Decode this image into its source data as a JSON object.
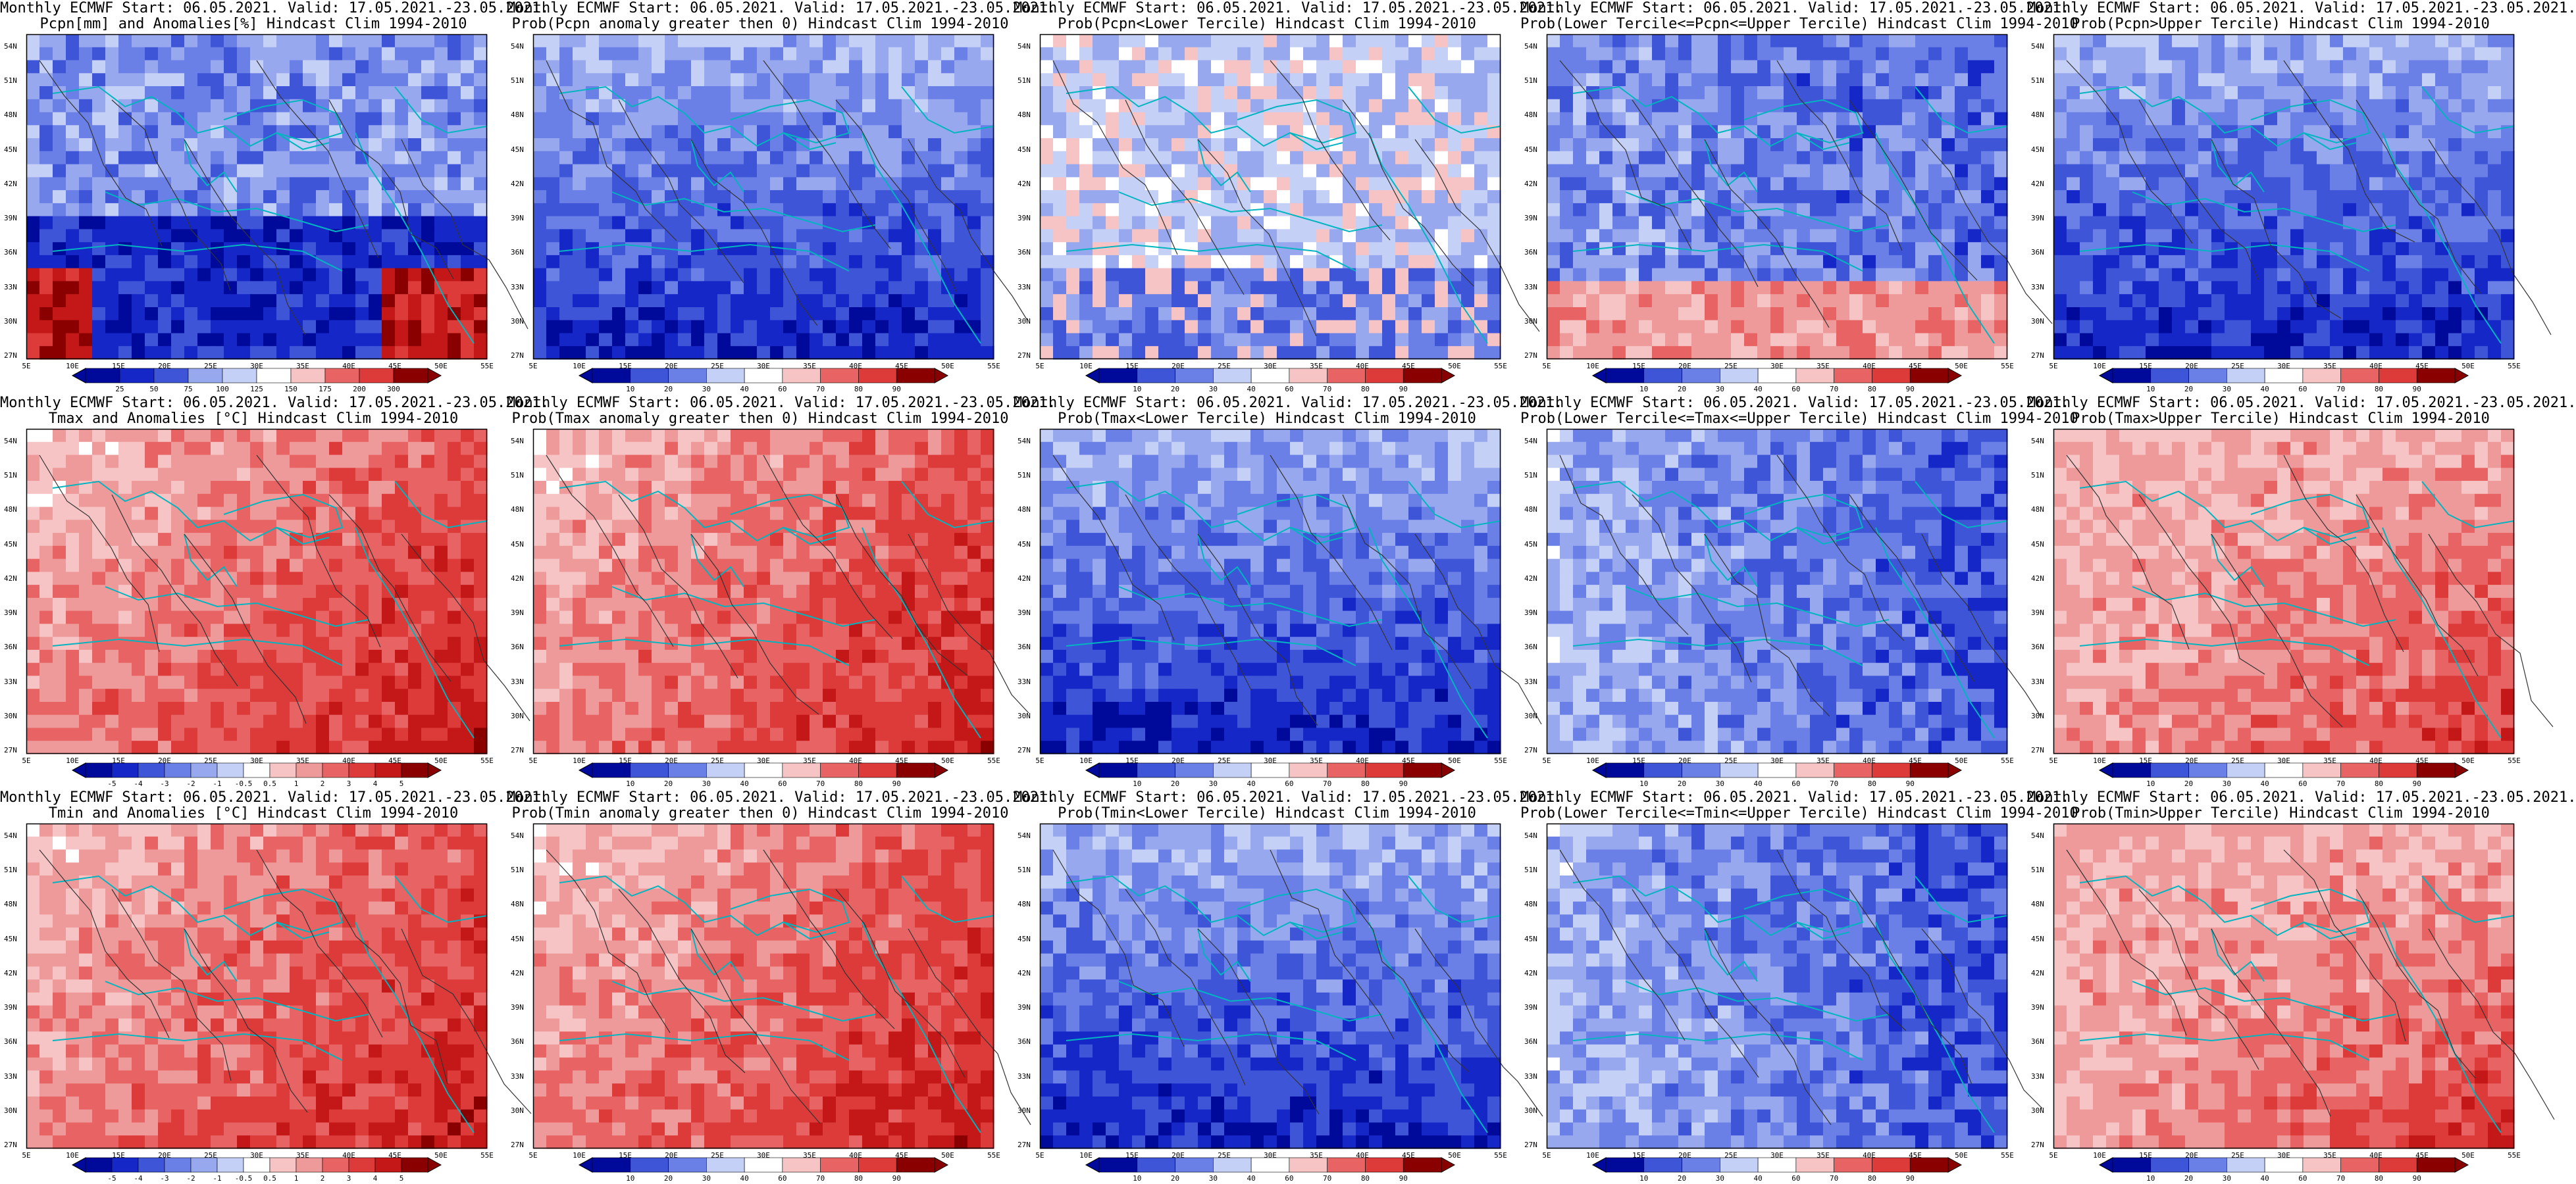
{
  "colors": {
    "sea": "#00c8c8",
    "coast": "#00b5c0",
    "contour": "#333333",
    "red_scale": [
      "#ffffff",
      "#f6c4c4",
      "#ef9a9a",
      "#e86464",
      "#dd3a3a",
      "#c41818",
      "#8a0000"
    ],
    "blue_scale": [
      "#ffffff",
      "#c4d0f6",
      "#98a8ee",
      "#6b80e6",
      "#3f55d8",
      "#1627c8",
      "#000a9a"
    ]
  },
  "lat_labels": [
    "54N",
    "51N",
    "48N",
    "45N",
    "42N",
    "39N",
    "36N",
    "33N",
    "30N",
    "27N"
  ],
  "lon_labels": [
    "5E",
    "10E",
    "15E",
    "20E",
    "25E",
    "30E",
    "35E",
    "40E",
    "45E",
    "50E",
    "55E"
  ],
  "panels": [
    {
      "title1": "Monthly ECMWF Start: 06.05.2021. Valid: 17.05.2021.-23.05.2021.",
      "title2": "Pcpn[mm] and Anomalies[%]",
      "title2_suffix": "Hindcast Clim 1994-2010",
      "colorbar_labels": [
        "25",
        "50",
        "75",
        "100",
        "125",
        "150",
        "175",
        "200",
        "300"
      ],
      "scheme": "precip-anom"
    },
    {
      "title1": "Monthly ECMWF Start: 06.05.2021. Valid: 17.05.2021.-23.05.2021.",
      "title2": "Prob(Pcpn anomaly greater then 0)",
      "title2_suffix": "Hindcast Clim 1994-2010",
      "colorbar_labels": [
        "10",
        "20",
        "30",
        "40",
        "60",
        "70",
        "80",
        "90"
      ],
      "scheme": "blue"
    },
    {
      "title1": "Monthly ECMWF Start: 06.05.2021. Valid: 17.05.2021.-23.05.2021.",
      "title2": "Prob(Pcpn<Lower Tercile)",
      "title2_suffix": "Hindcast Clim 1994-2010",
      "colorbar_labels": [
        "10",
        "20",
        "30",
        "40",
        "60",
        "70",
        "80",
        "90"
      ],
      "scheme": "mixed-light"
    },
    {
      "title1": "Monthly ECMWF Start: 06.05.2021. Valid: 17.05.2021.-23.05.2021.",
      "title2": "Prob(Lower Tercile<=Pcpn<=Upper Tercile)",
      "title2_suffix": "Hindcast Clim 1994-2010",
      "colorbar_labels": [
        "10",
        "20",
        "30",
        "40",
        "60",
        "70",
        "80",
        "90"
      ],
      "scheme": "blue-red-south"
    },
    {
      "title1": "Monthly ECMWF Start: 06.05.2021. Valid: 17.05.2021.-23.05.2021.",
      "title2": "Prob(Pcpn>Upper Tercile)",
      "title2_suffix": "Hindcast Clim 1994-2010",
      "colorbar_labels": [
        "10",
        "20",
        "30",
        "40",
        "60",
        "70",
        "80",
        "90"
      ],
      "scheme": "blue"
    },
    {
      "title1": "Monthly ECMWF Start: 06.05.2021. Valid: 17.05.2021.-23.05.2021.",
      "title2": "Tmax and Anomalies [°C]",
      "title2_suffix": "Hindcast Clim 1994-2010",
      "colorbar_labels": [
        "-5",
        "-4",
        "-3",
        "-2",
        "-1",
        "-0.5",
        "0.5",
        "1",
        "2",
        "3",
        "4",
        "5"
      ],
      "scheme": "red"
    },
    {
      "title1": "Monthly ECMWF Start: 06.05.2021. Valid: 17.05.2021.-23.05.2021.",
      "title2": "Prob(Tmax anomaly greater then 0)",
      "title2_suffix": "Hindcast Clim 1994-2010",
      "colorbar_labels": [
        "10",
        "20",
        "30",
        "40",
        "60",
        "70",
        "80",
        "90"
      ],
      "scheme": "red"
    },
    {
      "title1": "Monthly ECMWF Start: 06.05.2021. Valid: 17.05.2021.-23.05.2021.",
      "title2": "Prob(Tmax<Lower Tercile)",
      "title2_suffix": "Hindcast Clim 1994-2010",
      "colorbar_labels": [
        "10",
        "20",
        "30",
        "40",
        "60",
        "70",
        "80",
        "90"
      ],
      "scheme": "blue"
    },
    {
      "title1": "Monthly ECMWF Start: 06.05.2021. Valid: 17.05.2021.-23.05.2021.",
      "title2": "Prob(Lower Tercile<=Tmax<=Upper Tercile)",
      "title2_suffix": "Hindcast Clim 1994-2010",
      "colorbar_labels": [
        "10",
        "20",
        "30",
        "40",
        "60",
        "70",
        "80",
        "90"
      ],
      "scheme": "blue-mid"
    },
    {
      "title1": "Monthly ECMWF Start: 06.05.2021. Valid: 17.05.2021.-23.05.2021.",
      "title2": "Prob(Tmax>Upper Tercile)",
      "title2_suffix": "Hindcast Clim 1994-2010",
      "colorbar_labels": [
        "10",
        "20",
        "30",
        "40",
        "60",
        "70",
        "80",
        "90"
      ],
      "scheme": "red-light"
    },
    {
      "title1": "Monthly ECMWF Start: 06.05.2021. Valid: 17.05.2021.-23.05.2021.",
      "title2": "Tmin and Anomalies [°C]",
      "title2_suffix": "Hindcast Clim 1994-2010",
      "colorbar_labels": [
        "-5",
        "-4",
        "-3",
        "-2",
        "-1",
        "-0.5",
        "0.5",
        "1",
        "2",
        "3",
        "4",
        "5"
      ],
      "scheme": "red"
    },
    {
      "title1": "Monthly ECMWF Start: 06.05.2021. Valid: 17.05.2021.-23.05.2021.",
      "title2": "Prob(Tmin anomaly greater then 0)",
      "title2_suffix": "Hindcast Clim 1994-2010",
      "colorbar_labels": [
        "10",
        "20",
        "30",
        "40",
        "60",
        "70",
        "80",
        "90"
      ],
      "scheme": "red"
    },
    {
      "title1": "Monthly ECMWF Start: 06.05.2021. Valid: 17.05.2021.-23.05.2021.",
      "title2": "Prob(Tmin<Lower Tercile)",
      "title2_suffix": "Hindcast Clim 1994-2010",
      "colorbar_labels": [
        "10",
        "20",
        "30",
        "40",
        "60",
        "70",
        "80",
        "90"
      ],
      "scheme": "blue"
    },
    {
      "title1": "Monthly ECMWF Start: 06.05.2021. Valid: 17.05.2021.-23.05.2021.",
      "title2": "Prob(Lower Tercile<=Tmin<=Upper Tercile)",
      "title2_suffix": "Hindcast Clim 1994-2010",
      "colorbar_labels": [
        "10",
        "20",
        "30",
        "40",
        "60",
        "70",
        "80",
        "90"
      ],
      "scheme": "blue-mid"
    },
    {
      "title1": "Monthly ECMWF Start: 06.05.2021. Valid: 17.05.2021.-23.05.2021.",
      "title2": "Prob(Tmin>Upper Tercile)",
      "title2_suffix": "Hindcast Clim 1994-2010",
      "colorbar_labels": [
        "10",
        "20",
        "30",
        "40",
        "60",
        "70",
        "80",
        "90"
      ],
      "scheme": "red-light"
    }
  ]
}
